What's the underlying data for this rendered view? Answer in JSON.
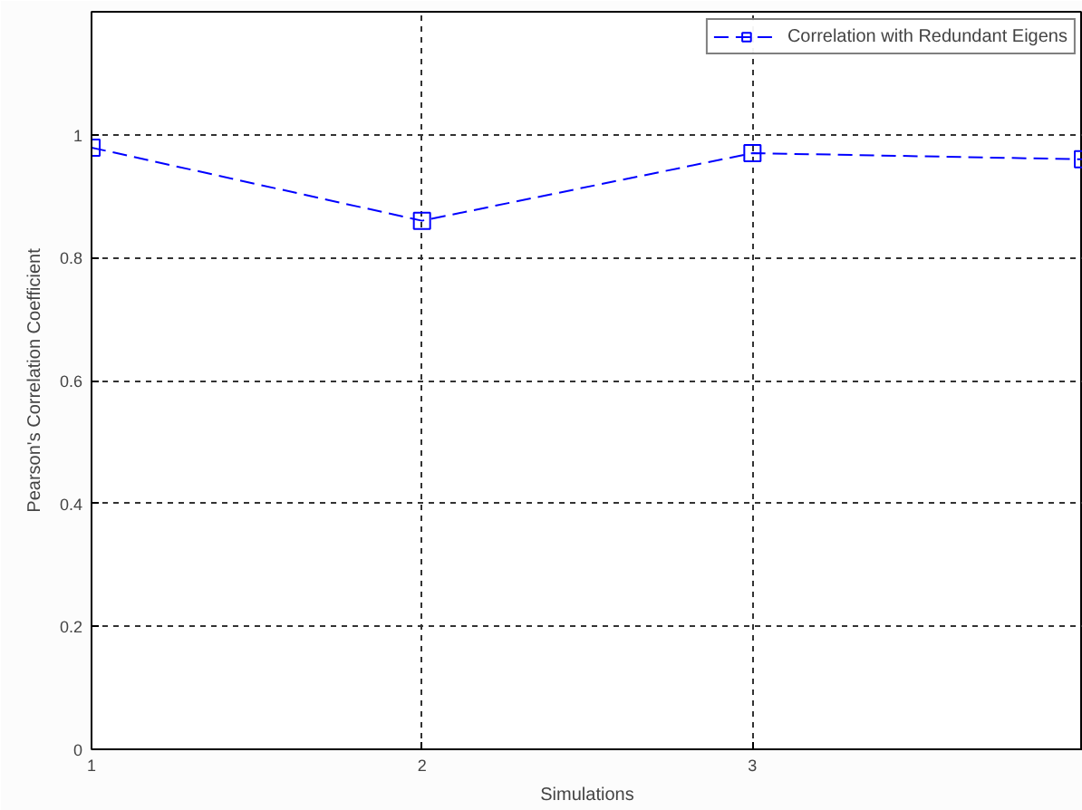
{
  "chart_data": {
    "type": "line",
    "xlabel": "Simulations",
    "ylabel": "Pearson's Correlation Coefficient",
    "x": [
      1,
      2,
      3,
      4
    ],
    "series": [
      {
        "name": "Correlation with Redundant Eigens",
        "color": "#0000ff",
        "values": [
          0.979,
          0.86,
          0.97,
          0.96
        ]
      }
    ],
    "xlim": [
      1,
      4
    ],
    "ylim": [
      0,
      1.2
    ],
    "xticks": [
      1,
      2,
      3
    ],
    "yticks": [
      0,
      0.2,
      0.4,
      0.6,
      0.8,
      1
    ],
    "grid": true,
    "legend": "top right",
    "marker": "square",
    "line_style": "dashed"
  }
}
